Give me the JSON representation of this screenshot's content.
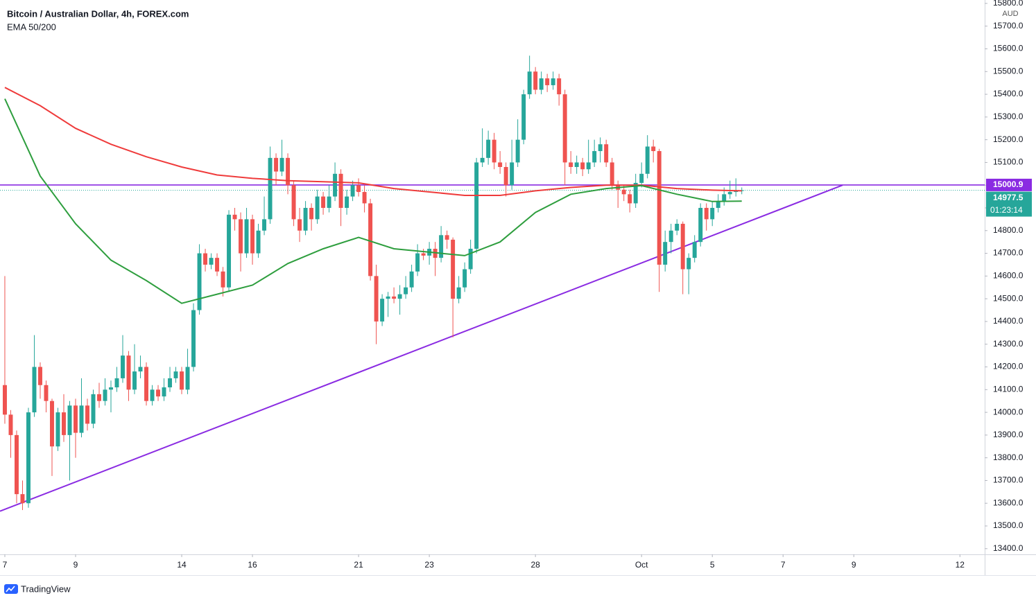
{
  "chart_data": {
    "type": "candlestick",
    "title": "Bitcoin / Australian Dollar, 4h, FOREX.com",
    "subtitle": "EMA 50/200",
    "currency": "AUD",
    "up_color": "#26a69a",
    "down_color": "#ef5350",
    "open": [
      14120,
      13990,
      13900,
      13640,
      13600,
      14000,
      14200,
      14120,
      14050,
      13850,
      14000,
      13900,
      14030,
      13910,
      14030,
      13950,
      14080,
      14050,
      14100,
      14110,
      14150,
      14250,
      14100,
      14180,
      14200,
      14050,
      14100,
      14070,
      14110,
      14150,
      14180,
      14100,
      14200,
      14450,
      14700,
      14650,
      14680,
      14620,
      14550,
      14870,
      14850,
      14700,
      14850,
      14700,
      14800,
      14850,
      15120,
      15060,
      15120,
      15000,
      14850,
      14800,
      14900,
      14850,
      14950,
      14900,
      14950,
      15050,
      14900,
      14950,
      15000,
      14970,
      14920,
      14600,
      14400,
      14500,
      14510,
      14500,
      14520,
      14550,
      14620,
      14700,
      14690,
      14720,
      14680,
      14780,
      14760,
      14500,
      14550,
      14630,
      14720,
      15100,
      15120,
      15200,
      15100,
      15080,
      15000,
      15100,
      15200,
      15400,
      15500,
      15420,
      15470,
      15440,
      15470,
      15400,
      15100,
      15080,
      15100,
      15070,
      15100,
      15150,
      15180,
      15100,
      15000,
      14980,
      14960,
      14920,
      15010,
      15050,
      15170,
      15150,
      14650,
      14750,
      14800,
      14830,
      14630,
      14680,
      14750,
      14900,
      14850,
      14900,
      14930,
      14960,
      14970,
      14975
    ],
    "high": [
      14600,
      14010,
      13920,
      13700,
      14020,
      14340,
      14220,
      14140,
      14060,
      14020,
      14080,
      14050,
      14060,
      14150,
      14060,
      14100,
      14130,
      14150,
      14140,
      14200,
      14340,
      14270,
      14300,
      14250,
      14220,
      14120,
      14120,
      14150,
      14200,
      14200,
      14200,
      14280,
      14480,
      14740,
      14720,
      14700,
      14700,
      14640,
      14890,
      14900,
      14880,
      14900,
      14870,
      14830,
      14950,
      15170,
      15140,
      15200,
      15140,
      15020,
      14900,
      14930,
      14920,
      14980,
      14970,
      15000,
      15100,
      15070,
      14980,
      15020,
      15030,
      15000,
      14940,
      14650,
      14520,
      14530,
      14550,
      14560,
      14600,
      14650,
      14740,
      14720,
      14750,
      14750,
      14820,
      14800,
      14770,
      14600,
      14660,
      14760,
      15120,
      15250,
      15240,
      15230,
      15150,
      15100,
      15200,
      15290,
      15420,
      15570,
      15520,
      15500,
      15490,
      15500,
      15490,
      15420,
      15150,
      15130,
      15120,
      15200,
      15200,
      15210,
      15200,
      15120,
      15020,
      15000,
      14980,
      15050,
      15100,
      15220,
      15200,
      15160,
      14800,
      14830,
      14850,
      14840,
      14700,
      14780,
      14920,
      14920,
      14930,
      14960,
      14990,
      15020,
      15030,
      14990
    ],
    "low": [
      13950,
      13800,
      13600,
      13570,
      13580,
      13980,
      14060,
      14000,
      13720,
      13830,
      13870,
      13700,
      13800,
      13890,
      13920,
      13930,
      14020,
      14030,
      14000,
      14090,
      14130,
      14050,
      14080,
      14150,
      14030,
      14030,
      14050,
      14050,
      14090,
      14130,
      14080,
      14080,
      14180,
      14430,
      14620,
      14630,
      14600,
      14510,
      14530,
      14800,
      14620,
      14680,
      14650,
      14680,
      14780,
      14830,
      15000,
      15040,
      14960,
      14820,
      14750,
      14780,
      14800,
      14830,
      14870,
      14880,
      14930,
      14820,
      14870,
      14930,
      14950,
      14880,
      14580,
      14300,
      14380,
      14420,
      14480,
      14430,
      14500,
      14530,
      14600,
      14670,
      14650,
      14600,
      14660,
      14720,
      14330,
      14480,
      14530,
      14610,
      14700,
      15080,
      15090,
      15070,
      15050,
      14950,
      14980,
      15080,
      15180,
      15380,
      15400,
      15400,
      15410,
      15420,
      15350,
      15000,
      15050,
      15050,
      15040,
      15050,
      15080,
      15100,
      15080,
      14980,
      14900,
      14930,
      14880,
      14900,
      14990,
      15030,
      15100,
      14530,
      14620,
      14700,
      14780,
      14520,
      14520,
      14660,
      14730,
      14800,
      14820,
      14880,
      14910,
      14940,
      14950,
      14960
    ],
    "close": [
      13990,
      13900,
      13640,
      13600,
      14000,
      14200,
      14120,
      14050,
      13850,
      14000,
      13900,
      14030,
      13910,
      14030,
      13950,
      14080,
      14050,
      14100,
      14110,
      14150,
      14250,
      14100,
      14180,
      14200,
      14050,
      14100,
      14070,
      14110,
      14150,
      14180,
      14100,
      14200,
      14450,
      14700,
      14650,
      14680,
      14620,
      14550,
      14870,
      14850,
      14700,
      14850,
      14700,
      14800,
      14850,
      15120,
      15060,
      15120,
      15000,
      14850,
      14800,
      14900,
      14850,
      14950,
      14900,
      14950,
      15050,
      14900,
      14950,
      15000,
      14970,
      14920,
      14600,
      14400,
      14500,
      14510,
      14500,
      14520,
      14550,
      14620,
      14700,
      14690,
      14720,
      14680,
      14780,
      14760,
      14500,
      14550,
      14630,
      14720,
      15100,
      15120,
      15200,
      15100,
      15080,
      15000,
      15100,
      15200,
      15400,
      15500,
      15420,
      15470,
      15440,
      15470,
      15400,
      15100,
      15080,
      15100,
      15070,
      15100,
      15150,
      15180,
      15100,
      15000,
      14980,
      14960,
      14920,
      15010,
      15050,
      15170,
      15150,
      14650,
      14750,
      14800,
      14830,
      14630,
      14680,
      14750,
      14900,
      14850,
      14900,
      14930,
      14960,
      14970,
      14975,
      14977.5
    ],
    "series": [
      {
        "color": "#ef3b3b",
        "x": [
          0,
          6,
          12,
          18,
          24,
          30,
          36,
          42,
          48,
          54,
          60,
          66,
          72,
          78,
          84,
          90,
          96,
          102,
          108,
          114,
          120,
          125
        ],
        "values": [
          15430,
          15350,
          15250,
          15180,
          15125,
          15080,
          15045,
          15030,
          15020,
          15015,
          15010,
          14985,
          14970,
          14955,
          14955,
          14975,
          14990,
          15000,
          15000,
          14985,
          14978,
          14975
        ]
      },
      {
        "color": "#2e9e3e",
        "x": [
          0,
          6,
          12,
          18,
          24,
          30,
          36,
          42,
          48,
          54,
          60,
          66,
          72,
          78,
          84,
          90,
          96,
          102,
          108,
          114,
          120,
          125
        ],
        "values": [
          15380,
          15040,
          14830,
          14670,
          14580,
          14480,
          14520,
          14560,
          14655,
          14720,
          14770,
          14720,
          14705,
          14690,
          14750,
          14880,
          14960,
          14985,
          14998,
          14960,
          14928,
          14930
        ]
      }
    ],
    "trendline": {
      "color": "#8a2be2",
      "x": [
        -0.82,
        142.1
      ],
      "y": [
        13565,
        15000
      ]
    },
    "level": {
      "color": "#8a2be2",
      "value": 15000.9
    },
    "last_price": 14977.5,
    "countdown": "01:23:14",
    "xlim": [
      -0.82,
      166.2
    ],
    "ylim": [
      13375,
      15815
    ],
    "xticks": [
      {
        "value": 0,
        "label": "7"
      },
      {
        "value": 12,
        "label": "9"
      },
      {
        "value": 30,
        "label": "14"
      },
      {
        "value": 42,
        "label": "16"
      },
      {
        "value": 60,
        "label": "21"
      },
      {
        "value": 72,
        "label": "23"
      },
      {
        "value": 90,
        "label": "28"
      },
      {
        "value": 108,
        "label": "Oct"
      },
      {
        "value": 120,
        "label": "5"
      },
      {
        "value": 132,
        "label": "7"
      },
      {
        "value": 144,
        "label": "9"
      },
      {
        "value": 162,
        "label": "12"
      }
    ],
    "yticks": [
      {
        "value": 13400,
        "label": "13400.0"
      },
      {
        "value": 13500,
        "label": "13500.0"
      },
      {
        "value": 13600,
        "label": "13600.0"
      },
      {
        "value": 13700,
        "label": "13700.0"
      },
      {
        "value": 13800,
        "label": "13800.0"
      },
      {
        "value": 13900,
        "label": "13900.0"
      },
      {
        "value": 14000,
        "label": "14000.0"
      },
      {
        "value": 14100,
        "label": "14100.0"
      },
      {
        "value": 14200,
        "label": "14200.0"
      },
      {
        "value": 14300,
        "label": "14300.0"
      },
      {
        "value": 14400,
        "label": "14400.0"
      },
      {
        "value": 14500,
        "label": "14500.0"
      },
      {
        "value": 14600,
        "label": "14600.0"
      },
      {
        "value": 14700,
        "label": "14700.0"
      },
      {
        "value": 14800,
        "label": "14800.0"
      },
      {
        "value": 14900,
        "label": "14900.0"
      },
      {
        "value": 15000,
        "label": "15000.0"
      },
      {
        "value": 15100,
        "label": "15100.0"
      },
      {
        "value": 15200,
        "label": "15200.0"
      },
      {
        "value": 15300,
        "label": "15300.0"
      },
      {
        "value": 15400,
        "label": "15400.0"
      },
      {
        "value": 15500,
        "label": "15500.0"
      },
      {
        "value": 15600,
        "label": "15600.0"
      },
      {
        "value": 15700,
        "label": "15700.0"
      },
      {
        "value": 15800,
        "label": "15800.0"
      }
    ],
    "grid": false,
    "branding": "TradingView"
  }
}
